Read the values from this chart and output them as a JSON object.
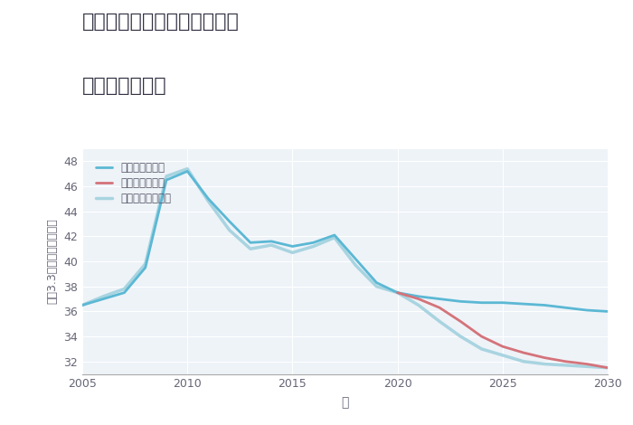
{
  "title_line1": "埼玉県久喜市菖蒲町上大崎の",
  "title_line2": "土地の価格推移",
  "xlabel": "年",
  "ylabel": "平（3.3㎡）単価（万円）",
  "ylim": [
    31,
    49
  ],
  "yticks": [
    32,
    34,
    36,
    38,
    40,
    42,
    44,
    46,
    48
  ],
  "xlim": [
    2005,
    2030
  ],
  "xticks": [
    2005,
    2010,
    2015,
    2020,
    2025,
    2030
  ],
  "background_color": "#ffffff",
  "plot_bg_color": "#eef3f8",
  "grid_color": "#ffffff",
  "good_color": "#5bb8d4",
  "bad_color": "#d4737a",
  "normal_color": "#a8d4e0",
  "legend_labels": [
    "グッドシナリオ",
    "バッドシナリオ",
    "ノーマルシナリオ"
  ],
  "good_x": [
    2005,
    2006,
    2007,
    2008,
    2009,
    2010,
    2011,
    2012,
    2013,
    2014,
    2015,
    2016,
    2017,
    2018,
    2019,
    2020,
    2021,
    2022,
    2023,
    2024,
    2025,
    2026,
    2027,
    2028,
    2029,
    2030
  ],
  "good_y": [
    36.5,
    37.0,
    37.5,
    39.5,
    46.5,
    47.2,
    45.0,
    43.2,
    41.5,
    41.6,
    41.2,
    41.5,
    42.1,
    40.2,
    38.3,
    37.5,
    37.2,
    37.0,
    36.8,
    36.7,
    36.7,
    36.6,
    36.5,
    36.3,
    36.1,
    36.0
  ],
  "bad_x": [
    2020,
    2021,
    2022,
    2023,
    2024,
    2025,
    2026,
    2027,
    2028,
    2029,
    2030
  ],
  "bad_y": [
    37.5,
    37.0,
    36.3,
    35.2,
    34.0,
    33.2,
    32.7,
    32.3,
    32.0,
    31.8,
    31.5
  ],
  "normal_x": [
    2005,
    2006,
    2007,
    2008,
    2009,
    2010,
    2011,
    2012,
    2013,
    2014,
    2015,
    2016,
    2017,
    2018,
    2019,
    2020,
    2021,
    2022,
    2023,
    2024,
    2025,
    2026,
    2027,
    2028,
    2029,
    2030
  ],
  "normal_y": [
    36.5,
    37.2,
    37.8,
    39.8,
    46.8,
    47.4,
    44.8,
    42.5,
    41.0,
    41.3,
    40.7,
    41.2,
    41.9,
    39.7,
    38.0,
    37.5,
    36.5,
    35.2,
    34.0,
    33.0,
    32.5,
    32.0,
    31.8,
    31.7,
    31.6,
    31.5
  ]
}
